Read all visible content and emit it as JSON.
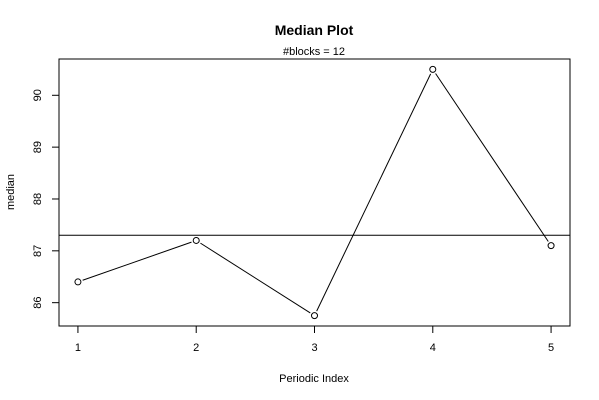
{
  "chart_data": {
    "type": "line",
    "title": "Median Plot",
    "subtitle": "#blocks =  12",
    "xlabel": "Periodic Index",
    "ylabel": "median",
    "x": [
      1,
      2,
      3,
      4,
      5
    ],
    "y": [
      86.4,
      87.2,
      85.75,
      90.5,
      87.1
    ],
    "reference_line": 87.3,
    "xlim": [
      0.84,
      5.16
    ],
    "ylim": [
      85.55,
      90.7
    ],
    "x_ticks": [
      "1",
      "2",
      "3",
      "4",
      "5"
    ],
    "y_ticks": [
      "86",
      "87",
      "88",
      "89",
      "90"
    ],
    "grid": false,
    "marker": "open-circle"
  }
}
